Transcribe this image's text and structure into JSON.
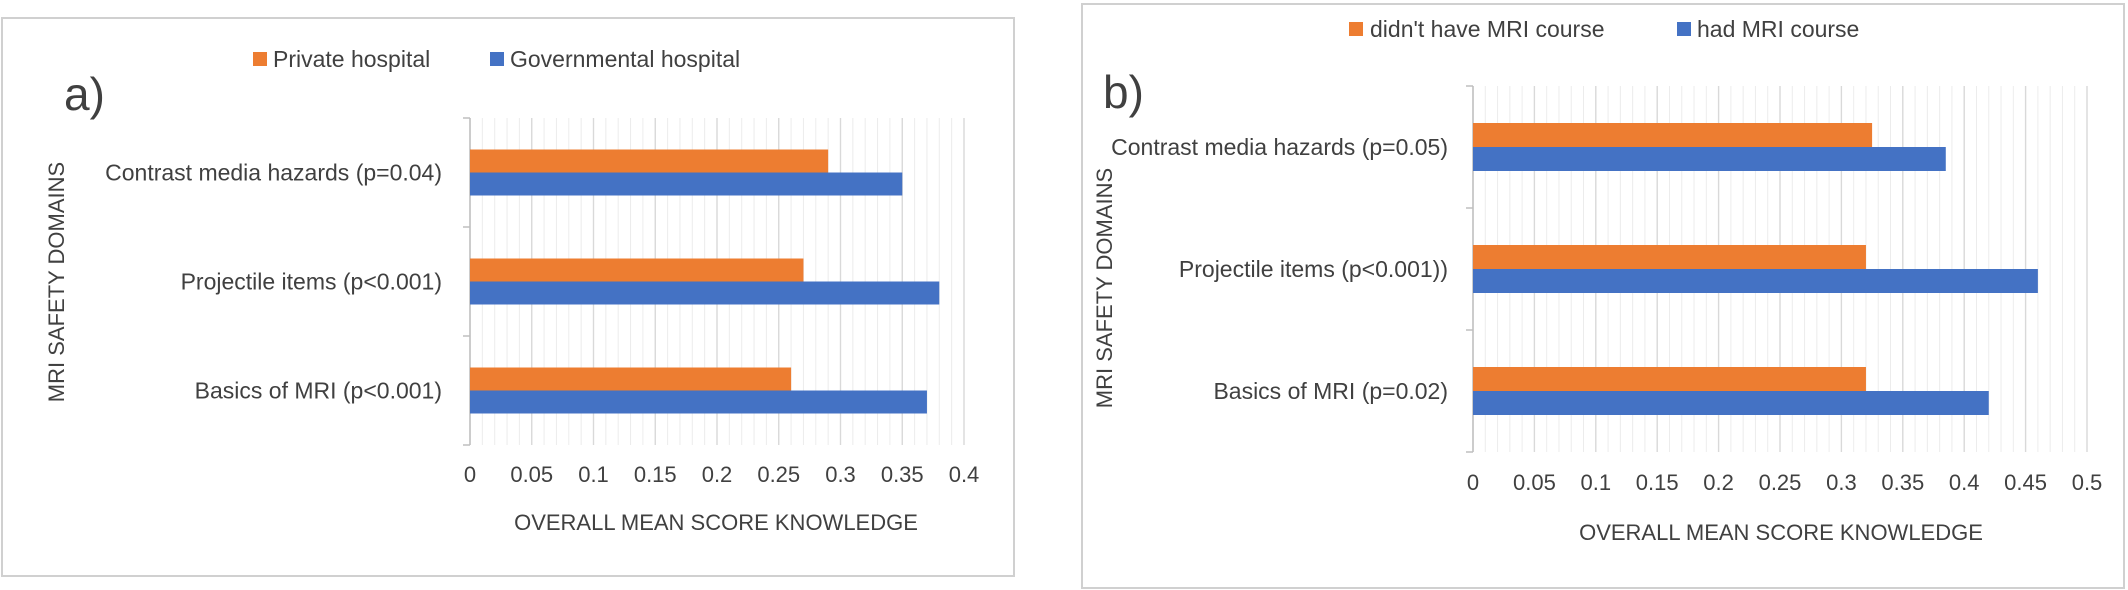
{
  "colors": {
    "orange": "#ED7D31",
    "blue": "#4472C4",
    "grid_major": "#d9d9d9",
    "grid_minor": "#ececec",
    "text": "#404040",
    "frame": "#d0d0d0"
  },
  "chart_data": [
    {
      "panel_label": "a)",
      "type": "bar",
      "orientation": "horizontal",
      "categories": [
        "Contrast media hazards (p=0.04)",
        "Projectile items (p<0.001)",
        "Basics of MRI (p<0.001)"
      ],
      "series": [
        {
          "name": "Private hospital",
          "color": "#ED7D31",
          "values": [
            0.29,
            0.27,
            0.26
          ]
        },
        {
          "name": "Governmental hospital",
          "color": "#4472C4",
          "values": [
            0.35,
            0.38,
            0.37
          ]
        }
      ],
      "xlabel": "OVERALL MEAN SCORE KNOWLEDGE",
      "ylabel": "MRI SAFETY DOMAINS",
      "xlim": [
        0,
        0.4
      ],
      "ticks": [
        "0",
        "0.05",
        "0.1",
        "0.15",
        "0.2",
        "0.25",
        "0.3",
        "0.35",
        "0.4"
      ],
      "grid": true,
      "legend_position": "top"
    },
    {
      "panel_label": "b)",
      "type": "bar",
      "orientation": "horizontal",
      "categories": [
        "Contrast media hazards (p=0.05)",
        "Projectile items  (p<0.001))",
        "Basics of MRI (p=0.02)"
      ],
      "series": [
        {
          "name": "didn't have MRI course",
          "color": "#ED7D31",
          "values": [
            0.325,
            0.32,
            0.32
          ]
        },
        {
          "name": "had MRI course",
          "color": "#4472C4",
          "values": [
            0.385,
            0.46,
            0.42
          ]
        }
      ],
      "xlabel": "OVERALL MEAN SCORE KNOWLEDGE",
      "ylabel": "MRI SAFETY DOMAINS",
      "xlim": [
        0,
        0.5
      ],
      "ticks": [
        "0",
        "0.05",
        "0.1",
        "0.15",
        "0.2",
        "0.25",
        "0.3",
        "0.35",
        "0.4",
        "0.45",
        "0.5"
      ],
      "grid": true,
      "legend_position": "top"
    }
  ]
}
